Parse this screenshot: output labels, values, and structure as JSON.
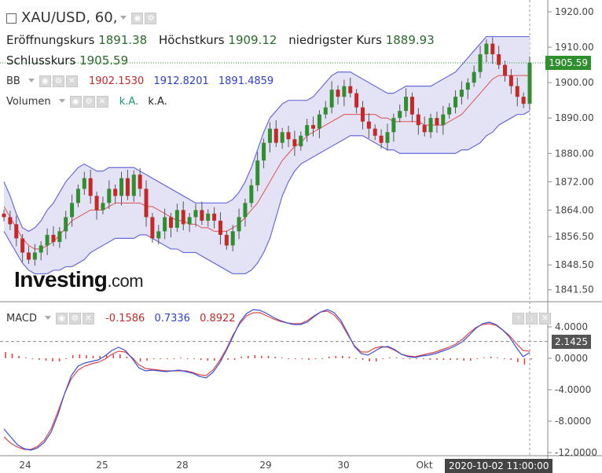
{
  "header": {
    "symbol": "XAU/USD, 60,",
    "open_label": "Eröffnungskurs",
    "open_value": "1891.38",
    "high_label": "Höchstkurs",
    "high_value": "1909.12",
    "low_label": "niedrigster Kurs",
    "low_value": "1889.93",
    "close_label": "Schlusskurs",
    "close_value": "1905.59"
  },
  "indicators": {
    "bb": {
      "label": "BB",
      "v1": "1902.1530",
      "v2": "1912.8201",
      "v3": "1891.4859"
    },
    "volume": {
      "label": "Volumen",
      "v1": "k.A.",
      "v2": "k.A."
    },
    "macd": {
      "label": "MACD",
      "v1": "-0.1586",
      "v2": "0.7336",
      "v3": "0.8922"
    }
  },
  "logo": {
    "main": "Investing",
    "suffix": ".com"
  },
  "price_tag": "1905.59",
  "macd_tag": "2.1425",
  "crosshair_date": "2020-10-02 11:00:00",
  "colors": {
    "up": "#2f8f2f",
    "down": "#c62828",
    "bb_band": "#6a6ae0",
    "bb_fill": "#dcdcf3",
    "bb_mid": "#e05050",
    "macd": "#3a4fd8",
    "signal": "#e04848",
    "hist": "#e04848",
    "price_tag": "#2f8f2f",
    "macd_tag": "#555555"
  },
  "chart_data": [
    {
      "type": "candlestick",
      "title": "XAU/USD, 60,",
      "y_ticks": [
        1841.5,
        1848.5,
        1856.5,
        1864.0,
        1872.0,
        1880.0,
        1890.0,
        1900.0,
        1910.0,
        1920.0
      ],
      "y_tick_labels": [
        "1841.50",
        "1848.50",
        "1856.50",
        "1864.00",
        "1872.00",
        "1880.00",
        "1890.00",
        "1900.00",
        "1910.00",
        "1920.00"
      ],
      "ylim": [
        1839,
        1922
      ],
      "x_tick_labels": [
        "24",
        "25",
        "28",
        "29",
        "30",
        "Okt"
      ],
      "close_series": [
        1862,
        1860,
        1856,
        1852,
        1850,
        1852,
        1854,
        1857,
        1855,
        1858,
        1862,
        1866,
        1870,
        1873,
        1868,
        1864,
        1866,
        1870,
        1868,
        1873,
        1868,
        1874,
        1870,
        1862,
        1856,
        1858,
        1862,
        1859,
        1864,
        1860,
        1862,
        1864,
        1861,
        1863,
        1861,
        1857,
        1854,
        1858,
        1862,
        1866,
        1871,
        1878,
        1883,
        1887,
        1883,
        1886,
        1884,
        1882,
        1885,
        1888,
        1887,
        1891,
        1893,
        1898,
        1896,
        1899,
        1897,
        1893,
        1889,
        1887,
        1885,
        1883,
        1886,
        1890,
        1892,
        1896,
        1891,
        1888,
        1886,
        1890,
        1888,
        1891,
        1893,
        1896,
        1898,
        1900,
        1903,
        1908,
        1911,
        1908,
        1905,
        1902,
        1899,
        1896,
        1894,
        1905.59
      ],
      "bb_upper": [
        1872,
        1868,
        1863,
        1859,
        1858,
        1859,
        1861,
        1864,
        1866,
        1869,
        1872,
        1874,
        1876,
        1877,
        1876,
        1875,
        1875,
        1876,
        1876,
        1876,
        1876,
        1876,
        1875,
        1874,
        1873,
        1872,
        1871,
        1870,
        1869,
        1868,
        1867,
        1866,
        1866,
        1866,
        1866,
        1866,
        1866,
        1867,
        1869,
        1872,
        1876,
        1881,
        1886,
        1890,
        1892,
        1894,
        1895,
        1895,
        1895,
        1895,
        1896,
        1898,
        1900,
        1902,
        1903,
        1903,
        1903,
        1902,
        1901,
        1900,
        1899,
        1898,
        1897,
        1897,
        1898,
        1899,
        1899,
        1899,
        1899,
        1899,
        1900,
        1901,
        1902,
        1903,
        1905,
        1907,
        1909,
        1911,
        1913,
        1913,
        1913,
        1913,
        1913,
        1913,
        1913,
        1913
      ],
      "bb_lower": [
        1858,
        1855,
        1852,
        1849,
        1847,
        1846,
        1846,
        1846,
        1847,
        1847,
        1848,
        1848,
        1849,
        1850,
        1852,
        1853,
        1854,
        1855,
        1856,
        1856,
        1856,
        1856,
        1857,
        1857,
        1856,
        1855,
        1854,
        1853,
        1853,
        1852,
        1852,
        1852,
        1851,
        1850,
        1849,
        1848,
        1847,
        1846,
        1846,
        1846,
        1847,
        1849,
        1852,
        1856,
        1862,
        1868,
        1872,
        1875,
        1877,
        1878,
        1879,
        1880,
        1881,
        1882,
        1883,
        1884,
        1885,
        1885,
        1885,
        1884,
        1883,
        1882,
        1881,
        1881,
        1880,
        1880,
        1880,
        1880,
        1880,
        1880,
        1880,
        1880,
        1880,
        1880,
        1881,
        1881,
        1882,
        1883,
        1885,
        1886,
        1888,
        1889,
        1890,
        1891,
        1891,
        1892
      ],
      "bb_mid": [
        1865,
        1862,
        1859,
        1856,
        1854,
        1853,
        1853,
        1854,
        1855,
        1857,
        1859,
        1861,
        1862,
        1863,
        1864,
        1864,
        1864,
        1865,
        1866,
        1866,
        1866,
        1866,
        1866,
        1865,
        1865,
        1864,
        1863,
        1862,
        1861,
        1861,
        1860,
        1860,
        1859,
        1859,
        1858,
        1858,
        1858,
        1859,
        1860,
        1862,
        1864,
        1866,
        1869,
        1872,
        1875,
        1878,
        1880,
        1882,
        1883,
        1885,
        1886,
        1887,
        1888,
        1889,
        1890,
        1891,
        1891,
        1891,
        1891,
        1891,
        1891,
        1890,
        1890,
        1889,
        1889,
        1889,
        1889,
        1889,
        1888,
        1888,
        1888,
        1888,
        1889,
        1890,
        1891,
        1893,
        1895,
        1897,
        1899,
        1901,
        1902,
        1902,
        1902,
        1902,
        1902,
        1902
      ]
    },
    {
      "type": "line",
      "title": "MACD",
      "y_ticks": [
        -12,
        -8,
        -4,
        0,
        4
      ],
      "y_tick_labels": [
        "-12.0000",
        "-8.0000",
        "-4.0000",
        "0.0000",
        "4.0000"
      ],
      "ylim": [
        -12.2,
        7.0
      ],
      "series": [
        {
          "name": "MACD",
          "values": [
            -9.0,
            -10.0,
            -11.0,
            -11.5,
            -11.7,
            -11.4,
            -10.7,
            -9.4,
            -7.2,
            -4.5,
            -2.2,
            -1.0,
            -0.6,
            -0.4,
            -0.2,
            0.3,
            1.0,
            1.4,
            1.0,
            0.0,
            -1.2,
            -1.6,
            -1.5,
            -1.6,
            -1.7,
            -1.6,
            -1.5,
            -1.7,
            -1.9,
            -2.3,
            -2.5,
            -1.8,
            -0.6,
            1.0,
            2.8,
            4.6,
            5.7,
            6.2,
            6.1,
            5.7,
            5.2,
            4.8,
            4.5,
            4.3,
            4.3,
            4.6,
            5.3,
            5.9,
            6.2,
            5.8,
            4.8,
            3.2,
            1.5,
            0.6,
            0.4,
            0.9,
            1.4,
            1.5,
            1.1,
            0.5,
            0.2,
            0.1,
            0.3,
            0.4,
            0.6,
            0.9,
            1.2,
            1.6,
            2.1,
            2.9,
            3.8,
            4.4,
            4.6,
            4.3,
            3.6,
            2.7,
            1.4,
            0.2,
            0.7336
          ]
        },
        {
          "name": "Signal",
          "values": [
            -10.0,
            -10.8,
            -11.3,
            -11.6,
            -11.6,
            -11.2,
            -10.4,
            -9.0,
            -6.8,
            -4.5,
            -2.6,
            -1.5,
            -1.0,
            -0.7,
            -0.5,
            -0.1,
            0.5,
            0.9,
            0.8,
            0.1,
            -0.8,
            -1.3,
            -1.4,
            -1.5,
            -1.6,
            -1.6,
            -1.6,
            -1.6,
            -1.8,
            -2.1,
            -2.2,
            -1.5,
            -0.3,
            1.2,
            3.0,
            4.4,
            5.4,
            5.8,
            5.8,
            5.4,
            5.0,
            4.7,
            4.5,
            4.4,
            4.4,
            4.8,
            5.4,
            5.9,
            6.0,
            5.5,
            4.5,
            3.0,
            1.6,
            0.8,
            0.8,
            1.3,
            1.5,
            1.4,
            1.0,
            0.5,
            0.3,
            0.2,
            0.4,
            0.6,
            0.8,
            1.1,
            1.4,
            1.8,
            2.4,
            3.2,
            3.9,
            4.3,
            4.4,
            4.2,
            3.6,
            2.9,
            1.9,
            1.0,
            0.8922
          ]
        }
      ],
      "histogram": [
        0.8,
        0.6,
        0.3,
        0.1,
        -0.1,
        -0.2,
        -0.3,
        -0.4,
        -0.4,
        0.0,
        0.4,
        0.5,
        0.4,
        0.3,
        0.3,
        0.4,
        0.5,
        0.5,
        0.2,
        -0.1,
        -0.4,
        -0.3,
        -0.1,
        -0.1,
        -0.1,
        0.0,
        0.1,
        -0.1,
        -0.1,
        -0.2,
        -0.3,
        -0.3,
        -0.3,
        -0.2,
        -0.2,
        0.2,
        0.3,
        0.4,
        0.3,
        0.3,
        0.2,
        0.1,
        0.0,
        -0.1,
        -0.1,
        -0.2,
        -0.1,
        0.0,
        0.2,
        0.3,
        0.3,
        0.2,
        -0.1,
        -0.2,
        -0.4,
        -0.4,
        -0.1,
        0.1,
        0.1,
        0.0,
        -0.1,
        -0.1,
        -0.1,
        -0.2,
        -0.2,
        -0.2,
        -0.2,
        -0.2,
        -0.3,
        -0.3,
        -0.1,
        0.1,
        0.2,
        0.1,
        0.0,
        -0.2,
        -0.5,
        -0.8,
        -0.1586
      ]
    }
  ]
}
